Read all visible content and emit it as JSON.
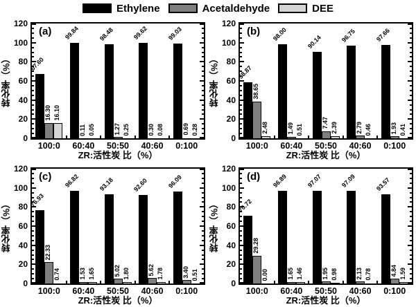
{
  "legend": {
    "items": [
      {
        "name": "ethylene",
        "label": "Ethylene",
        "color": "#000000"
      },
      {
        "name": "acetaldehyde",
        "label": "Acetaldehyde",
        "color": "#7f7f7f"
      },
      {
        "name": "dee",
        "label": "DEE",
        "color": "#d4d4d4"
      }
    ],
    "position": "top-center"
  },
  "axes": {
    "ylabel": "转化率（%）",
    "xlabel": "ZR:活性炭 比（%）",
    "ylim": [
      0,
      120
    ],
    "yticks": [
      0,
      20,
      40,
      60,
      80,
      100,
      120
    ],
    "minor_tick_step": 5,
    "grid": false,
    "value_label_decimals": 2
  },
  "chart_data": [
    {
      "type": "bar",
      "panel_label": "(a)",
      "categories": [
        "100:0",
        "60:40",
        "50:50",
        "40:60",
        "0:100"
      ],
      "series": [
        {
          "name": "Ethylene",
          "values": [
            67.6,
            99.84,
            98.48,
            99.62,
            99.03
          ]
        },
        {
          "name": "Acetaldehyde",
          "values": [
            16.3,
            0.11,
            1.27,
            0.3,
            0.69
          ]
        },
        {
          "name": "DEE",
          "values": [
            16.1,
            0.05,
            0.25,
            0.08,
            0.28
          ]
        }
      ],
      "xlabel": "ZR:活性炭 比（%）",
      "ylabel": "转化率（%）",
      "ylim": [
        0,
        120
      ]
    },
    {
      "type": "bar",
      "panel_label": "(b)",
      "categories": [
        "100:0",
        "60:40",
        "50:50",
        "40:60",
        "0:100"
      ],
      "series": [
        {
          "name": "Ethylene",
          "values": [
            58.87,
            98.0,
            90.14,
            96.75,
            97.66
          ]
        },
        {
          "name": "Acetaldehyde",
          "values": [
            38.65,
            1.49,
            7.47,
            2.79,
            1.93
          ]
        },
        {
          "name": "DEE",
          "values": [
            2.48,
            0.51,
            2.39,
            0.46,
            0.41
          ]
        }
      ],
      "xlabel": "ZR:活性炭 比（%）",
      "ylabel": "转化率（%）",
      "ylim": [
        0,
        120
      ]
    },
    {
      "type": "bar",
      "panel_label": "(c)",
      "categories": [
        "100:0",
        "60:40",
        "50:50",
        "40:60",
        "0:100"
      ],
      "series": [
        {
          "name": "Ethylene",
          "values": [
            76.93,
            96.82,
            93.18,
            92.6,
            96.09
          ]
        },
        {
          "name": "Acetaldehyde",
          "values": [
            22.33,
            1.53,
            5.02,
            5.62,
            3.4
          ]
        },
        {
          "name": "DEE",
          "values": [
            0.74,
            1.65,
            1.8,
            1.78,
            0.51
          ]
        }
      ],
      "xlabel": "ZR:活性炭 比（%）",
      "ylabel": "转化率（%）",
      "ylim": [
        0,
        120
      ]
    },
    {
      "type": "bar",
      "panel_label": "(d)",
      "categories": [
        "100:0",
        "60:40",
        "50:50",
        "40:60",
        "0:100"
      ],
      "series": [
        {
          "name": "Ethylene",
          "values": [
            70.72,
            96.89,
            97.07,
            97.09,
            93.57
          ]
        },
        {
          "name": "Acetaldehyde",
          "values": [
            29.28,
            1.65,
            1.95,
            2.13,
            4.84
          ]
        },
        {
          "name": "DEE",
          "values": [
            0.0,
            1.46,
            0.98,
            0.78,
            1.59
          ]
        }
      ],
      "xlabel": "ZR:活性炭 比（%）",
      "ylabel": "转化率（%）",
      "ylim": [
        0,
        120
      ]
    }
  ]
}
